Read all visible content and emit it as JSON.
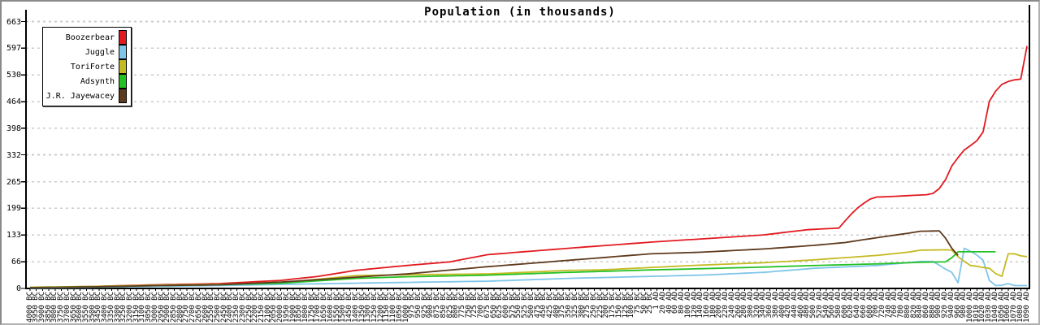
{
  "title": "Population (in thousands)",
  "frame": {
    "background": "#ffffff",
    "border_color": "#8a8a8a",
    "plot_border_color": "#000000",
    "gridline_color": "#cbcbcb"
  },
  "chart_data": {
    "type": "line",
    "title": "Population (in thousands)",
    "ylim": [
      0,
      663
    ],
    "y_ticks": [
      0,
      66,
      133,
      199,
      265,
      332,
      398,
      464,
      530,
      597,
      663
    ],
    "grid": "horizontal-dashed",
    "legend_position": "top-left",
    "x_labels": [
      "4000 BC",
      "3950 BC",
      "3900 BC",
      "3850 BC",
      "3800 BC",
      "3750 BC",
      "3700 BC",
      "3650 BC",
      "3600 BC",
      "3550 BC",
      "3500 BC",
      "3450 BC",
      "3400 BC",
      "3350 BC",
      "3300 BC",
      "3250 BC",
      "3200 BC",
      "3150 BC",
      "3100 BC",
      "3050 BC",
      "3000 BC",
      "2950 BC",
      "2900 BC",
      "2850 BC",
      "2800 BC",
      "2750 BC",
      "2700 BC",
      "2650 BC",
      "2600 BC",
      "2550 BC",
      "2500 BC",
      "2450 BC",
      "2400 BC",
      "2350 BC",
      "2300 BC",
      "2250 BC",
      "2200 BC",
      "2150 BC",
      "2100 BC",
      "2050 BC",
      "2000 BC",
      "1950 BC",
      "1900 BC",
      "1850 BC",
      "1800 BC",
      "1750 BC",
      "1700 BC",
      "1650 BC",
      "1600 BC",
      "1550 BC",
      "1500 BC",
      "1450 BC",
      "1400 BC",
      "1350 BC",
      "1300 BC",
      "1250 BC",
      "1200 BC",
      "1150 BC",
      "1100 BC",
      "1050 BC",
      "1000 BC",
      "975 BC",
      "950 BC",
      "925 BC",
      "900 BC",
      "875 BC",
      "850 BC",
      "825 BC",
      "800 BC",
      "775 BC",
      "750 BC",
      "725 BC",
      "700 BC",
      "675 BC",
      "650 BC",
      "625 BC",
      "600 BC",
      "575 BC",
      "550 BC",
      "525 BC",
      "500 BC",
      "475 BC",
      "450 BC",
      "425 BC",
      "400 BC",
      "375 BC",
      "350 BC",
      "325 BC",
      "300 BC",
      "275 BC",
      "250 BC",
      "225 BC",
      "200 BC",
      "175 BC",
      "150 BC",
      "125 BC",
      "100 BC",
      "75 BC",
      "50 BC",
      "25 BC",
      "1 AD",
      "20 AD",
      "40 AD",
      "60 AD",
      "80 AD",
      "100 AD",
      "120 AD",
      "140 AD",
      "160 AD",
      "180 AD",
      "200 AD",
      "220 AD",
      "240 AD",
      "260 AD",
      "280 AD",
      "300 AD",
      "320 AD",
      "340 AD",
      "360 AD",
      "380 AD",
      "400 AD",
      "420 AD",
      "440 AD",
      "460 AD",
      "480 AD",
      "500 AD",
      "520 AD",
      "540 AD",
      "560 AD",
      "580 AD",
      "600 AD",
      "620 AD",
      "640 AD",
      "660 AD",
      "680 AD",
      "700 AD",
      "720 AD",
      "740 AD",
      "760 AD",
      "780 AD",
      "800 AD",
      "820 AD",
      "840 AD",
      "860 AD",
      "880 AD",
      "900 AD",
      "920 AD",
      "940 AD",
      "960 AD",
      "980 AD",
      "1000 AD",
      "1010 AD",
      "1020 AD",
      "1030 AD",
      "1040 AD",
      "1050 AD",
      "1060 AD",
      "1070 AD",
      "1080 AD",
      "1090 AD"
    ],
    "series": [
      {
        "name": "Boozerbear",
        "color": "#e21a1f",
        "keyframes": [
          [
            0,
            2
          ],
          [
            10,
            5
          ],
          [
            20,
            9
          ],
          [
            30,
            12
          ],
          [
            40,
            20
          ],
          [
            46,
            30
          ],
          [
            52,
            45
          ],
          [
            60,
            57
          ],
          [
            67,
            66
          ],
          [
            73,
            84
          ],
          [
            86,
            100
          ],
          [
            99,
            115
          ],
          [
            107,
            123
          ],
          [
            117,
            133
          ],
          [
            124,
            146
          ],
          [
            129,
            150
          ],
          [
            130,
            168
          ],
          [
            131,
            185
          ],
          [
            132,
            200
          ],
          [
            133,
            212
          ],
          [
            134,
            222
          ],
          [
            135,
            227
          ],
          [
            137,
            228
          ],
          [
            143,
            233
          ],
          [
            144,
            236
          ],
          [
            145,
            248
          ],
          [
            146,
            270
          ],
          [
            147,
            304
          ],
          [
            148,
            325
          ],
          [
            149,
            344
          ],
          [
            150,
            355
          ],
          [
            151,
            367
          ],
          [
            152,
            389
          ],
          [
            153,
            465
          ],
          [
            154,
            490
          ],
          [
            155,
            507
          ],
          [
            156,
            514
          ],
          [
            157,
            518
          ],
          [
            158,
            520
          ],
          [
            159,
            602
          ]
        ]
      },
      {
        "name": "Juggle",
        "color": "#7fc5e8",
        "keyframes": [
          [
            0,
            1
          ],
          [
            10,
            3
          ],
          [
            20,
            5
          ],
          [
            30,
            7
          ],
          [
            40,
            10
          ],
          [
            52,
            13
          ],
          [
            60,
            15
          ],
          [
            73,
            18
          ],
          [
            86,
            25
          ],
          [
            99,
            30
          ],
          [
            107,
            33
          ],
          [
            117,
            40
          ],
          [
            125,
            50
          ],
          [
            135,
            57
          ],
          [
            140,
            64
          ],
          [
            142,
            67
          ],
          [
            144,
            67
          ],
          [
            145,
            58
          ],
          [
            146,
            48
          ],
          [
            147,
            40
          ],
          [
            148,
            14
          ],
          [
            149,
            100
          ],
          [
            150,
            92
          ],
          [
            151,
            83
          ],
          [
            152,
            70
          ],
          [
            153,
            20
          ],
          [
            154,
            7
          ],
          [
            155,
            8
          ],
          [
            156,
            12
          ],
          [
            157,
            7
          ],
          [
            159,
            7
          ]
        ]
      },
      {
        "name": "ToriForte",
        "color": "#c4ba22",
        "keyframes": [
          [
            0,
            3
          ],
          [
            10,
            5
          ],
          [
            20,
            8
          ],
          [
            30,
            10
          ],
          [
            40,
            14
          ],
          [
            52,
            32
          ],
          [
            60,
            34
          ],
          [
            73,
            36
          ],
          [
            86,
            45
          ],
          [
            91,
            46
          ],
          [
            99,
            52
          ],
          [
            107,
            58
          ],
          [
            117,
            64
          ],
          [
            125,
            71
          ],
          [
            135,
            82
          ],
          [
            140,
            90
          ],
          [
            142,
            95
          ],
          [
            146,
            96
          ],
          [
            147,
            95
          ],
          [
            148,
            79
          ],
          [
            149,
            67
          ],
          [
            150,
            57
          ],
          [
            151,
            55
          ],
          [
            152,
            52
          ],
          [
            153,
            50
          ],
          [
            154,
            37
          ],
          [
            155,
            30
          ],
          [
            156,
            86
          ],
          [
            157,
            86
          ],
          [
            158,
            81
          ],
          [
            159,
            79
          ]
        ]
      },
      {
        "name": "Adsynth",
        "color": "#24c125",
        "keyframes": [
          [
            0,
            2
          ],
          [
            10,
            4
          ],
          [
            20,
            7
          ],
          [
            30,
            9
          ],
          [
            40,
            13
          ],
          [
            52,
            25
          ],
          [
            60,
            29
          ],
          [
            73,
            33
          ],
          [
            86,
            40
          ],
          [
            99,
            46
          ],
          [
            107,
            49
          ],
          [
            117,
            53
          ],
          [
            125,
            57
          ],
          [
            135,
            61
          ],
          [
            142,
            65
          ],
          [
            146,
            66
          ],
          [
            147,
            76
          ],
          [
            148,
            91
          ],
          [
            154,
            91
          ]
        ]
      },
      {
        "name": "J.R. Jayewacey",
        "color": "#5e3a1d",
        "keyframes": [
          [
            0,
            2
          ],
          [
            10,
            4
          ],
          [
            20,
            7
          ],
          [
            30,
            9
          ],
          [
            40,
            16
          ],
          [
            52,
            28
          ],
          [
            60,
            36
          ],
          [
            73,
            54
          ],
          [
            86,
            70
          ],
          [
            99,
            86
          ],
          [
            107,
            90
          ],
          [
            117,
            98
          ],
          [
            125,
            107
          ],
          [
            130,
            114
          ],
          [
            135,
            126
          ],
          [
            140,
            137
          ],
          [
            142,
            142
          ],
          [
            145,
            143
          ],
          [
            146,
            125
          ],
          [
            147,
            100
          ],
          [
            148,
            82
          ]
        ]
      }
    ]
  }
}
